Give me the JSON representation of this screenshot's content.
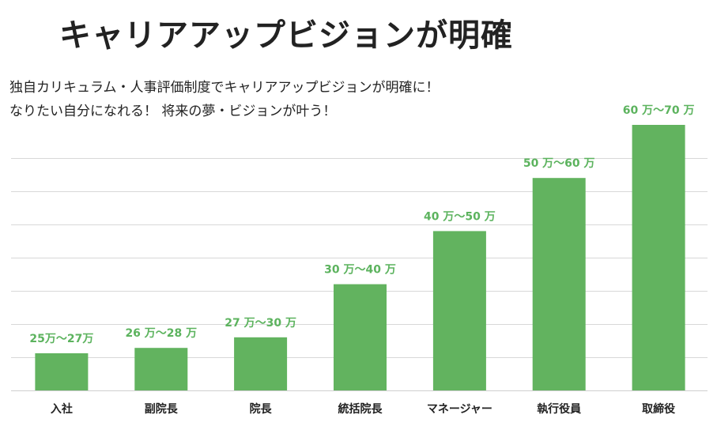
{
  "header": {
    "title": "キャリアアップビジョンが明確"
  },
  "description": {
    "line1": "独自カリキュラム・人事評価制度でキャリアアップビジョンが明確に！",
    "line2": "なりたい自分になれる！ 将来の夢・ビジョンが叶う！"
  },
  "colors": {
    "bar": "#62b35f",
    "label": "#5cb35e",
    "grid": "#d8d8d8"
  },
  "chart_data": {
    "type": "bar",
    "title": "",
    "xlabel": "",
    "ylabel": "",
    "grid": true,
    "ylim": [
      20,
      70
    ],
    "categories": [
      "入社",
      "副院長",
      "院長",
      "統括院長",
      "マネージャー",
      "執行役員",
      "取締役"
    ],
    "values": [
      27,
      28,
      30,
      40,
      50,
      60,
      70
    ],
    "value_labels": [
      "25万〜27万",
      "26 万〜28 万",
      "27 万〜30 万",
      "30 万〜40 万",
      "40 万〜50 万",
      "50 万〜60 万",
      "60 万〜70 万"
    ]
  }
}
